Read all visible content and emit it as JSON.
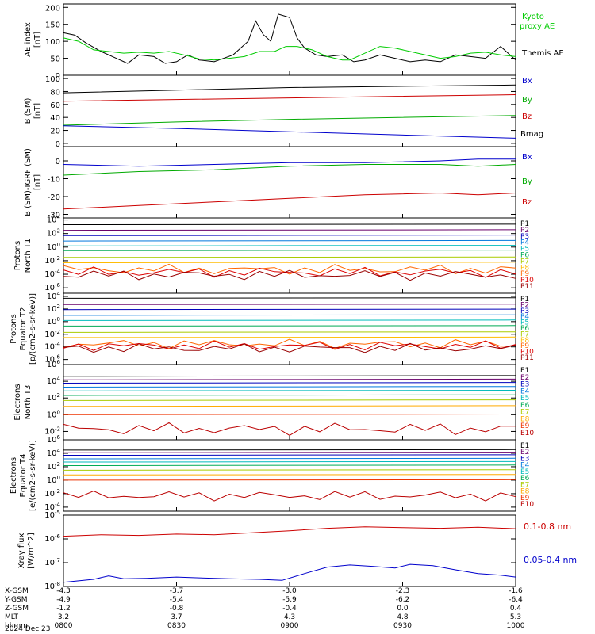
{
  "panels": [
    {
      "id": "ae",
      "ylabel": [
        "AE index",
        "[nT]"
      ],
      "yticks": [
        "0",
        "50",
        "100",
        "150",
        "200"
      ],
      "legend": [
        {
          "text": "Kyoto",
          "color": "#00cc00"
        },
        {
          "text": "proxy AE",
          "color": "#00cc00"
        },
        {
          "text": "Themis AE",
          "color": "#000000"
        }
      ]
    },
    {
      "id": "bsm",
      "ylabel": [
        "B (SM)",
        "[nT]"
      ],
      "yticks": [
        "0",
        "20",
        "40",
        "60",
        "80",
        "100"
      ],
      "legend": [
        {
          "text": "Bx",
          "color": "#0000cc"
        },
        {
          "text": "By",
          "color": "#00aa00"
        },
        {
          "text": "Bz",
          "color": "#cc0000"
        },
        {
          "text": "Bmag",
          "color": "#000000"
        }
      ]
    },
    {
      "id": "bigrf",
      "ylabel": [
        "B (SM)-IGRF (SM)",
        "[nT]"
      ],
      "yticks": [
        "-30",
        "-20",
        "-10",
        "0"
      ],
      "legend": [
        {
          "text": "Bx",
          "color": "#0000cc"
        },
        {
          "text": "By",
          "color": "#00aa00"
        },
        {
          "text": "Bz",
          "color": "#cc0000"
        }
      ]
    },
    {
      "id": "pn",
      "ylabel": [
        "Protons",
        "North T1"
      ],
      "yticks": [
        "10-6",
        "10-4",
        "10-2",
        "100",
        "102",
        "104"
      ],
      "legend": [
        {
          "text": "P1",
          "color": "#000000"
        },
        {
          "text": "P2",
          "color": "#6a006a"
        },
        {
          "text": "P3",
          "color": "#0000bb"
        },
        {
          "text": "P4",
          "color": "#0077dd"
        },
        {
          "text": "P5",
          "color": "#00bbbb"
        },
        {
          "text": "P6",
          "color": "#00aa55"
        },
        {
          "text": "P7",
          "color": "#aacc00"
        },
        {
          "text": "P8",
          "color": "#ffbb00"
        },
        {
          "text": "P9",
          "color": "#ff6600"
        },
        {
          "text": "P10",
          "color": "#dd0000"
        },
        {
          "text": "P11",
          "color": "#990000"
        }
      ]
    },
    {
      "id": "pe",
      "ylabel": [
        "Protons",
        "Equator T2",
        "[p/(cm2-s-sr-keV)]"
      ],
      "yticks": [
        "10-6",
        "10-4",
        "10-2",
        "100",
        "102",
        "104"
      ],
      "legend": [
        {
          "text": "P1",
          "color": "#000000"
        },
        {
          "text": "P2",
          "color": "#6a006a"
        },
        {
          "text": "P3",
          "color": "#0000bb"
        },
        {
          "text": "P4",
          "color": "#0077dd"
        },
        {
          "text": "P5",
          "color": "#00bbbb"
        },
        {
          "text": "P6",
          "color": "#00aa55"
        },
        {
          "text": "P7",
          "color": "#aacc00"
        },
        {
          "text": "P8",
          "color": "#ffbb00"
        },
        {
          "text": "P9",
          "color": "#ff6600"
        },
        {
          "text": "P10",
          "color": "#dd0000"
        },
        {
          "text": "P11",
          "color": "#990000"
        }
      ]
    },
    {
      "id": "en",
      "ylabel": [
        "Electrons",
        "North T3"
      ],
      "yticks": [
        "10-2",
        "100",
        "102",
        "104",
        "106"
      ],
      "legend": [
        {
          "text": "E1",
          "color": "#000000"
        },
        {
          "text": "E2",
          "color": "#6a006a"
        },
        {
          "text": "E3",
          "color": "#0000bb"
        },
        {
          "text": "E4",
          "color": "#0077dd"
        },
        {
          "text": "E5",
          "color": "#00bbbb"
        },
        {
          "text": "E6",
          "color": "#00aa55"
        },
        {
          "text": "E7",
          "color": "#aacc00"
        },
        {
          "text": "E8",
          "color": "#ffaa00"
        },
        {
          "text": "E9",
          "color": "#ee3300"
        },
        {
          "text": "E10",
          "color": "#bb0000"
        }
      ]
    },
    {
      "id": "ee",
      "ylabel": [
        "Electrons",
        "Equator T4",
        "[e/(cm2-s-sr-keV)]"
      ],
      "yticks": [
        "10-4",
        "10-2",
        "100",
        "102",
        "104",
        "106"
      ],
      "legend": [
        {
          "text": "E1",
          "color": "#000000"
        },
        {
          "text": "E2",
          "color": "#6a006a"
        },
        {
          "text": "E3",
          "color": "#0000bb"
        },
        {
          "text": "E4",
          "color": "#0077dd"
        },
        {
          "text": "E5",
          "color": "#00bbbb"
        },
        {
          "text": "E6",
          "color": "#00aa55"
        },
        {
          "text": "E7",
          "color": "#aacc00"
        },
        {
          "text": "E8",
          "color": "#ffaa00"
        },
        {
          "text": "E9",
          "color": "#ee3300"
        },
        {
          "text": "E10",
          "color": "#bb0000"
        }
      ]
    },
    {
      "id": "xray",
      "ylabel": [
        "Xray flux",
        "[W/m^2]"
      ],
      "yticks": [
        "10-8",
        "10-7",
        "10-6",
        "10-5"
      ],
      "legend": [
        {
          "text": "0.1-0.8 nm",
          "color": "#cc0000"
        },
        {
          "text": "0.05-0.4 nm",
          "color": "#0000cc"
        }
      ]
    }
  ],
  "xaxis": {
    "ticks": [
      "0800",
      "0830",
      "0900",
      "0930",
      "1000"
    ],
    "rows": [
      {
        "label": "X-GSM",
        "values": [
          "-4.3",
          "-3.7",
          "-3.0",
          "-2.3",
          "-1.6"
        ]
      },
      {
        "label": "Y-GSM",
        "values": [
          "-4.9",
          "-5.4",
          "-5.9",
          "-6.2",
          "-6.4"
        ]
      },
      {
        "label": "Z-GSM",
        "values": [
          "-1.2",
          "-0.8",
          "-0.4",
          "0.0",
          "0.4"
        ]
      },
      {
        "label": "MLT",
        "values": [
          "3.2",
          "3.7",
          "4.3",
          "4.8",
          "5.3"
        ]
      },
      {
        "label": "hhmm",
        "values": [
          "0800",
          "0830",
          "0900",
          "0930",
          "1000"
        ]
      }
    ],
    "date": "2024 Dec 23"
  },
  "chart_data": [
    {
      "type": "line",
      "panel": "ae",
      "ylim": [
        0,
        200
      ],
      "x": [
        "08:00",
        "08:10",
        "08:20",
        "08:30",
        "08:40",
        "08:50",
        "09:00",
        "09:10",
        "09:20",
        "09:30",
        "09:40",
        "09:50",
        "10:00"
      ],
      "series": [
        {
          "name": "Kyoto proxy AE",
          "values": [
            110,
            75,
            60,
            55,
            45,
            55,
            70,
            40,
            90,
            70,
            50,
            60,
            50
          ]
        },
        {
          "name": "Themis AE",
          "values": [
            125,
            50,
            35,
            50,
            40,
            170,
            60,
            30,
            55,
            45,
            40,
            90,
            45
          ]
        }
      ]
    },
    {
      "type": "line",
      "panel": "bsm",
      "ylim": [
        0,
        100
      ],
      "x": [
        "08:00",
        "09:00",
        "10:00"
      ],
      "series": [
        {
          "name": "Bx",
          "values": [
            27,
            18,
            8
          ]
        },
        {
          "name": "By",
          "values": [
            28,
            37,
            43
          ]
        },
        {
          "name": "Bz",
          "values": [
            65,
            70,
            75
          ]
        },
        {
          "name": "Bmag",
          "values": [
            78,
            86,
            90
          ]
        }
      ]
    },
    {
      "type": "line",
      "panel": "bigrf",
      "ylim": [
        -30,
        5
      ],
      "x": [
        "08:00",
        "09:00",
        "10:00"
      ],
      "series": [
        {
          "name": "Bx",
          "values": [
            -2,
            -1,
            2
          ]
        },
        {
          "name": "By",
          "values": [
            -8,
            -3,
            -2
          ]
        },
        {
          "name": "Bz",
          "values": [
            -27,
            -20,
            -18
          ]
        }
      ]
    }
  ]
}
